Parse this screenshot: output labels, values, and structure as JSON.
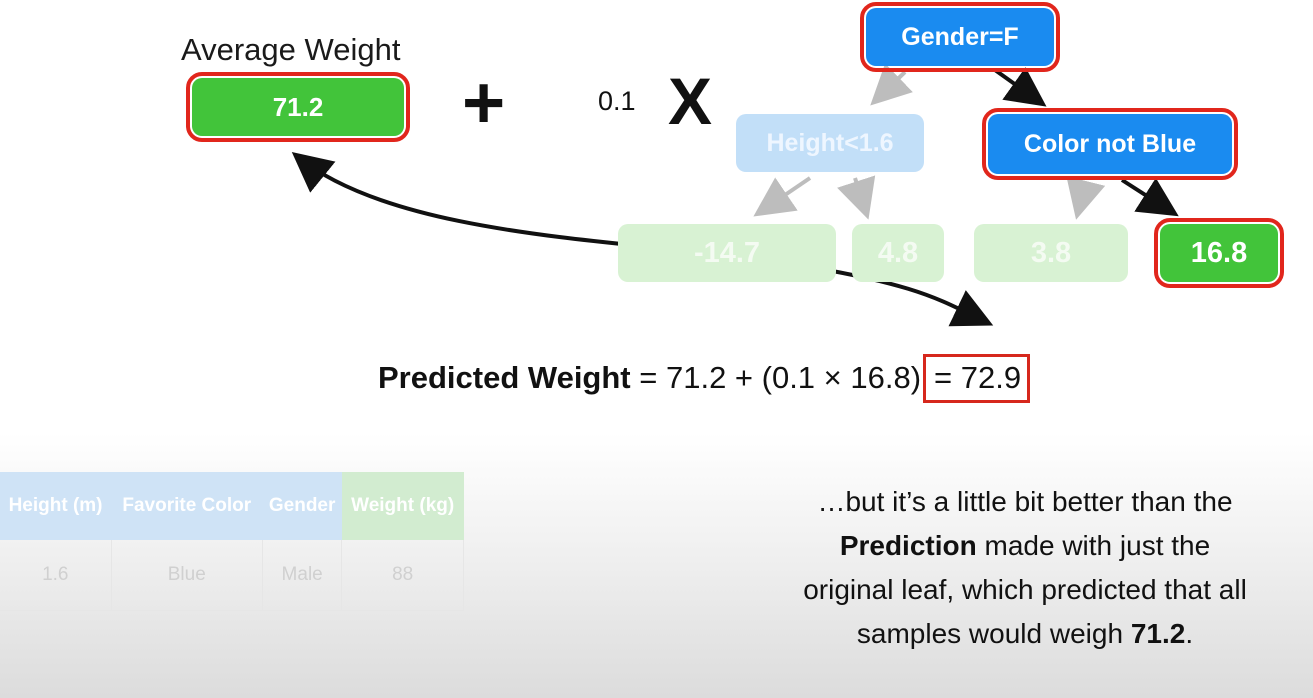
{
  "average_label": "Average Weight",
  "base_value": "71.2",
  "plus_sign": "+",
  "learning_rate": "0.1",
  "times_sign": "X",
  "tree": {
    "root": "Gender=F",
    "left_split": "Height<1.6",
    "right_split": "Color not Blue",
    "leaves": [
      "-14.7",
      "4.8",
      "3.8",
      "16.8"
    ]
  },
  "formula": {
    "label": "Predicted Weight",
    "expression": " = 71.2 + (0.1 × 16.8)",
    "result": "= 72.9"
  },
  "table": {
    "headers": [
      "Height (m)",
      "Favorite Color",
      "Gender",
      "Weight (kg)"
    ],
    "rows": [
      [
        "1.6",
        "Blue",
        "Male",
        "88"
      ]
    ]
  },
  "caption": {
    "part1": "…but it’s a little bit better than the ",
    "bold1": "Prediction",
    "part2": " made with just the original leaf, which predicted that all samples would weigh ",
    "bold2": "71.2",
    "part3": "."
  },
  "colors": {
    "highlight": "#e1261c",
    "leaf_green": "#42c43a",
    "node_blue": "#1a8bf0"
  }
}
